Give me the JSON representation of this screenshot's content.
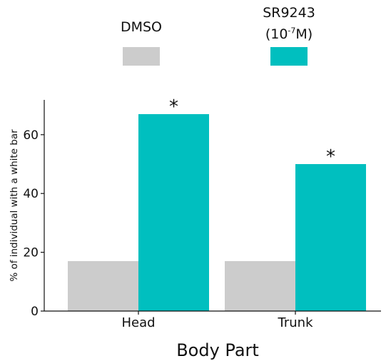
{
  "chart_data": {
    "type": "bar",
    "categories": [
      "Head",
      "Trunk"
    ],
    "series": [
      {
        "name": "DMSO",
        "color": "#cccccc",
        "values": [
          17,
          17
        ]
      },
      {
        "name": "SR9243 (10-7M)",
        "color": "#00bfbf",
        "values": [
          67,
          50
        ]
      }
    ],
    "significance": [
      {
        "category": "Head",
        "series": "SR9243 (10-7M)",
        "label": "*"
      },
      {
        "category": "Trunk",
        "series": "SR9243 (10-7M)",
        "label": "*"
      }
    ],
    "xlabel": "Body Part",
    "ylabel": "% of individual with a white bar",
    "ylim": [
      0,
      72
    ],
    "yticks": [
      0,
      20,
      40,
      60
    ],
    "grid": false,
    "legend_position": "top"
  },
  "legend": {
    "dmso_label": "DMSO",
    "sr_label_line1": "SR9243",
    "sr_label_base": "(10",
    "sr_label_exp": "-7",
    "sr_label_tail": "M)"
  }
}
